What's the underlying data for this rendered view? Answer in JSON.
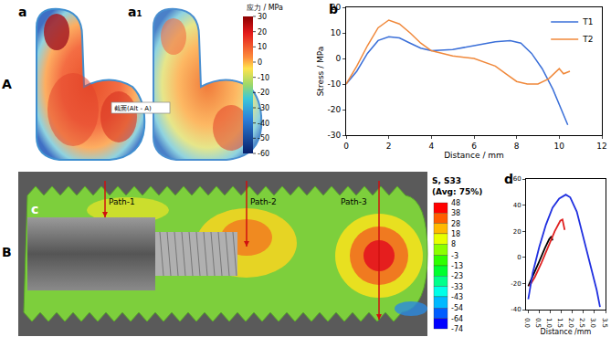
{
  "figure": {
    "row_labels": [
      "A",
      "B"
    ],
    "stress_map_a": {
      "labels": [
        "a",
        "a₁"
      ],
      "annotation": "截面(Alt - A)",
      "colorbar": {
        "title": "应力 / MPa",
        "range": [
          -60,
          30
        ],
        "ticks": [
          30,
          20,
          10,
          0,
          -10,
          -20,
          -30,
          -40,
          -50,
          -60
        ]
      }
    },
    "stress_map_c": {
      "label": "c",
      "paths": [
        "Path-1",
        "Path-2",
        "Path-3"
      ],
      "colorbar": {
        "title": [
          "S, S33",
          "(Avg: 75%)"
        ],
        "levels": [
          48,
          38,
          28,
          18,
          8,
          -3,
          -13,
          -23,
          -33,
          -43,
          -54,
          -64,
          -74
        ]
      }
    }
  },
  "chart_data": [
    {
      "label": "b",
      "type": "line",
      "x_label": "Distance / mm",
      "y_label": "Stress / MPa",
      "xlim": [
        0,
        12
      ],
      "xticks": [
        0,
        2,
        4,
        6,
        8,
        10,
        12
      ],
      "ylim": [
        -30,
        20
      ],
      "yticks": [
        -30,
        -20,
        -10,
        0,
        10,
        20
      ],
      "grid": false,
      "legend": "top right",
      "series": [
        {
          "name": "T1",
          "color": "#3a6fd8",
          "x": [
            0,
            0.5,
            1,
            1.5,
            2,
            2.5,
            3,
            3.5,
            4,
            5,
            6,
            7,
            7.7,
            8.2,
            8.7,
            9.2,
            9.7,
            10.1,
            10.4
          ],
          "values": [
            -10,
            -5,
            2,
            7,
            8.5,
            8,
            6,
            4,
            3,
            3.5,
            5,
            6.5,
            7,
            6,
            2,
            -4,
            -12,
            -20,
            -26
          ]
        },
        {
          "name": "T2",
          "color": "#f0883a",
          "x": [
            0,
            0.5,
            1,
            1.5,
            2,
            2.5,
            3,
            3.5,
            4,
            5,
            6,
            7,
            7.5,
            8,
            8.5,
            9,
            9.5,
            10,
            10.2,
            10.5
          ],
          "values": [
            -10,
            -3,
            5,
            12,
            15,
            13.5,
            10,
            6,
            3,
            1,
            0,
            -3,
            -6,
            -9,
            -10,
            -10,
            -8,
            -4,
            -6,
            -5
          ]
        }
      ]
    },
    {
      "label": "d",
      "type": "line",
      "x_label": "Distance /mm",
      "xlim": [
        -0.1,
        3.5
      ],
      "xticks": [
        {
          "value": 0,
          "label": "0.0"
        },
        {
          "value": 0.5,
          "label": "0.5"
        },
        {
          "value": 1,
          "label": "1.0"
        },
        {
          "value": 1.5,
          "label": "1.5"
        },
        {
          "value": 2,
          "label": "2.0"
        },
        {
          "value": 2.5,
          "label": "2.5"
        },
        {
          "value": 3,
          "label": "3.0"
        },
        {
          "value": 3.5,
          "label": "3.5"
        }
      ],
      "ylim": [
        -40,
        60
      ],
      "yticks": [
        -40,
        -20,
        0,
        20,
        40,
        60
      ],
      "grid": false,
      "series": [
        {
          "name": "Path-1",
          "color": "#000000",
          "x": [
            0,
            0.25,
            0.5,
            0.75,
            0.95,
            1.05,
            1.1
          ],
          "values": [
            -22,
            -13,
            -3,
            7,
            14,
            16,
            13
          ]
        },
        {
          "name": "Path-2",
          "color": "#e02020",
          "x": [
            0.05,
            0.3,
            0.6,
            0.9,
            1.2,
            1.45,
            1.55,
            1.65
          ],
          "values": [
            -22,
            -15,
            -4,
            8,
            20,
            28,
            29,
            21
          ]
        },
        {
          "name": "Path-3",
          "color": "#2030e0",
          "x": [
            0,
            0.2,
            0.5,
            0.8,
            1.1,
            1.4,
            1.7,
            1.9,
            2.2,
            2.5,
            2.8,
            3.1,
            3.25
          ],
          "values": [
            -32,
            -12,
            8,
            25,
            38,
            45,
            48,
            46,
            35,
            15,
            -5,
            -25,
            -38
          ]
        }
      ]
    }
  ]
}
